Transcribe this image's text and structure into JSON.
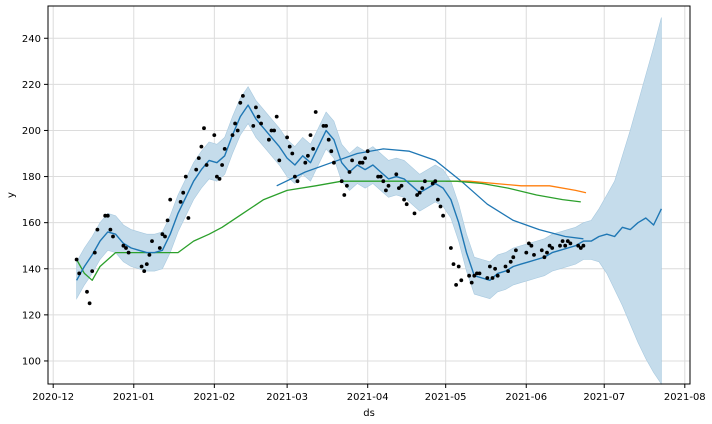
{
  "chart_data": {
    "type": "line",
    "title": "",
    "xlabel": "ds",
    "ylabel": "y",
    "x_range": [
      "2020-11-29",
      "2021-08-03"
    ],
    "ylim": [
      90,
      254
    ],
    "grid": true,
    "x_ticks": [
      "2020-12",
      "2021-01",
      "2021-02",
      "2021-03",
      "2021-04",
      "2021-05",
      "2021-06",
      "2021-07",
      "2021-08"
    ],
    "y_ticks": [
      100,
      120,
      140,
      160,
      180,
      200,
      220,
      240
    ],
    "colors": {
      "forecast": "#1f77b4",
      "band": "#c5dceb",
      "observed": "#000000",
      "trend_history": "#2ca02c",
      "trend_alt": "#ff7f0e",
      "trend_alt2": "#1f77b4"
    },
    "forecast": {
      "x": [
        "2020-12-10",
        "2020-12-13",
        "2020-12-16",
        "2020-12-19",
        "2020-12-22",
        "2020-12-25",
        "2020-12-28",
        "2020-12-31",
        "2021-01-03",
        "2021-01-06",
        "2021-01-09",
        "2021-01-12",
        "2021-01-15",
        "2021-01-18",
        "2021-01-21",
        "2021-01-24",
        "2021-01-27",
        "2021-01-30",
        "2021-02-02",
        "2021-02-05",
        "2021-02-08",
        "2021-02-11",
        "2021-02-14",
        "2021-02-17",
        "2021-02-20",
        "2021-02-23",
        "2021-02-26",
        "2021-03-01",
        "2021-03-04",
        "2021-03-07",
        "2021-03-10",
        "2021-03-13",
        "2021-03-16",
        "2021-03-19",
        "2021-03-22",
        "2021-03-25",
        "2021-03-28",
        "2021-03-31",
        "2021-04-03",
        "2021-04-06",
        "2021-04-09",
        "2021-04-12",
        "2021-04-15",
        "2021-04-18",
        "2021-04-21",
        "2021-04-24",
        "2021-04-27",
        "2021-04-30",
        "2021-05-03",
        "2021-05-06",
        "2021-05-09",
        "2021-05-12",
        "2021-05-15",
        "2021-05-18",
        "2021-05-21",
        "2021-05-24",
        "2021-05-27",
        "2021-05-30",
        "2021-06-02",
        "2021-06-05",
        "2021-06-08",
        "2021-06-11",
        "2021-06-14",
        "2021-06-17",
        "2021-06-20",
        "2021-06-23",
        "2021-06-26",
        "2021-06-29",
        "2021-07-02",
        "2021-07-05",
        "2021-07-08",
        "2021-07-11",
        "2021-07-14",
        "2021-07-17",
        "2021-07-20",
        "2021-07-23"
      ],
      "yhat": [
        135,
        141,
        146,
        152,
        156,
        155,
        151,
        149,
        148,
        147,
        147,
        148,
        155,
        164,
        171,
        178,
        183,
        187,
        186,
        189,
        198,
        206,
        211,
        205,
        201,
        197,
        193,
        188,
        185,
        189,
        186,
        193,
        200,
        196,
        186,
        182,
        185,
        183,
        185,
        182,
        179,
        180,
        179,
        176,
        173,
        175,
        177,
        175,
        170,
        160,
        147,
        137,
        136,
        135,
        138,
        139,
        141,
        142,
        143,
        144,
        145,
        147,
        148,
        149,
        150,
        152,
        152,
        154,
        155,
        154,
        158,
        157,
        160,
        162,
        159,
        166
      ],
      "yhat_upper": [
        143,
        149,
        154,
        160,
        164,
        163,
        159,
        157,
        156,
        155,
        155,
        156,
        163,
        172,
        179,
        186,
        191,
        195,
        194,
        197,
        206,
        214,
        219,
        213,
        209,
        205,
        201,
        196,
        193,
        197,
        194,
        201,
        208,
        204,
        194,
        190,
        193,
        191,
        193,
        190,
        187,
        188,
        187,
        184,
        181,
        183,
        185,
        183,
        178,
        168,
        155,
        145,
        144,
        143,
        146,
        147,
        149,
        150,
        151,
        152,
        153,
        155,
        156,
        157,
        158,
        160,
        161,
        166,
        172,
        178,
        189,
        200,
        212,
        224,
        236,
        249
      ],
      "yhat_lower": [
        127,
        133,
        138,
        144,
        148,
        147,
        143,
        141,
        140,
        139,
        139,
        140,
        147,
        156,
        163,
        170,
        175,
        179,
        178,
        181,
        190,
        198,
        203,
        197,
        193,
        189,
        185,
        180,
        177,
        181,
        178,
        185,
        192,
        188,
        178,
        174,
        177,
        175,
        177,
        174,
        171,
        172,
        171,
        168,
        165,
        167,
        169,
        167,
        162,
        152,
        139,
        129,
        128,
        127,
        130,
        131,
        133,
        134,
        135,
        136,
        137,
        139,
        140,
        141,
        142,
        144,
        144,
        143,
        138,
        131,
        124,
        116,
        108,
        101,
        95,
        90
      ]
    },
    "observed": {
      "x": [
        "2020-12-10",
        "2020-12-11",
        "2020-12-14",
        "2020-12-15",
        "2020-12-16",
        "2020-12-17",
        "2020-12-18",
        "2020-12-21",
        "2020-12-22",
        "2020-12-23",
        "2020-12-24",
        "2020-12-28",
        "2020-12-29",
        "2020-12-30",
        "2021-01-04",
        "2021-01-05",
        "2021-01-06",
        "2021-01-07",
        "2021-01-08",
        "2021-01-11",
        "2021-01-12",
        "2021-01-13",
        "2021-01-14",
        "2021-01-15",
        "2021-01-19",
        "2021-01-20",
        "2021-01-21",
        "2021-01-22",
        "2021-01-25",
        "2021-01-26",
        "2021-01-27",
        "2021-01-28",
        "2021-01-29",
        "2021-02-01",
        "2021-02-02",
        "2021-02-03",
        "2021-02-04",
        "2021-02-05",
        "2021-02-08",
        "2021-02-09",
        "2021-02-10",
        "2021-02-11",
        "2021-02-12",
        "2021-02-16",
        "2021-02-17",
        "2021-02-18",
        "2021-02-19",
        "2021-02-22",
        "2021-02-23",
        "2021-02-24",
        "2021-02-25",
        "2021-02-26",
        "2021-03-01",
        "2021-03-02",
        "2021-03-03",
        "2021-03-04",
        "2021-03-05",
        "2021-03-08",
        "2021-03-09",
        "2021-03-10",
        "2021-03-11",
        "2021-03-12",
        "2021-03-15",
        "2021-03-16",
        "2021-03-17",
        "2021-03-18",
        "2021-03-19",
        "2021-03-22",
        "2021-03-23",
        "2021-03-24",
        "2021-03-25",
        "2021-03-26",
        "2021-03-29",
        "2021-03-30",
        "2021-03-31",
        "2021-04-01",
        "2021-04-05",
        "2021-04-06",
        "2021-04-07",
        "2021-04-08",
        "2021-04-09",
        "2021-04-12",
        "2021-04-13",
        "2021-04-14",
        "2021-04-15",
        "2021-04-16",
        "2021-04-19",
        "2021-04-20",
        "2021-04-21",
        "2021-04-22",
        "2021-04-23",
        "2021-04-26",
        "2021-04-27",
        "2021-04-28",
        "2021-04-29",
        "2021-04-30",
        "2021-05-03",
        "2021-05-04",
        "2021-05-05",
        "2021-05-06",
        "2021-05-07",
        "2021-05-10",
        "2021-05-11",
        "2021-05-12",
        "2021-05-13",
        "2021-05-14",
        "2021-05-17",
        "2021-05-18",
        "2021-05-19",
        "2021-05-20",
        "2021-05-21",
        "2021-05-24",
        "2021-05-25",
        "2021-05-26",
        "2021-05-27",
        "2021-05-28",
        "2021-06-01",
        "2021-06-02",
        "2021-06-03",
        "2021-06-04",
        "2021-06-07",
        "2021-06-08",
        "2021-06-09",
        "2021-06-10",
        "2021-06-11",
        "2021-06-14",
        "2021-06-15",
        "2021-06-16",
        "2021-06-17",
        "2021-06-18",
        "2021-06-21",
        "2021-06-22",
        "2021-06-23"
      ],
      "y": [
        144,
        138,
        130,
        125,
        139,
        147,
        157,
        163,
        163,
        157,
        154,
        150,
        149,
        147,
        141,
        139,
        142,
        146,
        152,
        149,
        155,
        154,
        161,
        170,
        169,
        173,
        180,
        162,
        183,
        188,
        193,
        201,
        185,
        198,
        180,
        179,
        185,
        192,
        198,
        203,
        200,
        212,
        215,
        202,
        210,
        206,
        203,
        196,
        200,
        200,
        206,
        187,
        197,
        193,
        190,
        180,
        178,
        186,
        189,
        198,
        192,
        208,
        202,
        202,
        196,
        191,
        186,
        178,
        172,
        176,
        182,
        187,
        186,
        186,
        188,
        191,
        180,
        180,
        178,
        174,
        176,
        181,
        175,
        176,
        170,
        168,
        164,
        172,
        173,
        175,
        178,
        177,
        178,
        170,
        167,
        163,
        149,
        142,
        133,
        141,
        135,
        137,
        134,
        137,
        138,
        138,
        136,
        141,
        136,
        140,
        137,
        141,
        139,
        143,
        145,
        148,
        147,
        151,
        150,
        146,
        148,
        145,
        147,
        150,
        149,
        150,
        152,
        150,
        152,
        151,
        150,
        149,
        150
      ]
    },
    "trend_history": {
      "x": [
        "2020-12-10",
        "2020-12-13",
        "2020-12-16",
        "2020-12-19",
        "2020-12-25",
        "2021-01-01",
        "2021-01-10",
        "2021-01-18",
        "2021-01-24",
        "2021-01-30",
        "2021-02-04",
        "2021-02-12",
        "2021-02-20",
        "2021-03-01",
        "2021-03-12",
        "2021-03-22",
        "2021-04-01",
        "2021-04-12",
        "2021-04-25",
        "2021-05-05",
        "2021-05-15",
        "2021-05-25",
        "2021-06-05",
        "2021-06-15",
        "2021-06-22"
      ],
      "y": [
        144,
        138,
        135,
        141,
        147,
        147,
        147,
        147,
        152,
        155,
        158,
        164,
        170,
        174,
        176,
        178,
        178,
        178,
        178,
        178,
        177,
        175,
        172,
        170,
        169
      ]
    },
    "trend_alt": {
      "x": [
        "2021-05-01",
        "2021-05-10",
        "2021-05-20",
        "2021-05-30",
        "2021-06-10",
        "2021-06-20",
        "2021-06-24"
      ],
      "y": [
        178,
        178,
        177,
        176,
        176,
        174,
        173
      ]
    },
    "trend_alt2": {
      "x": [
        "2021-02-25",
        "2021-03-08",
        "2021-03-18",
        "2021-03-28",
        "2021-04-07",
        "2021-04-17",
        "2021-04-27",
        "2021-05-07",
        "2021-05-17",
        "2021-05-27",
        "2021-06-06",
        "2021-06-16",
        "2021-06-23"
      ],
      "y": [
        176,
        182,
        186,
        190,
        192,
        191,
        187,
        178,
        168,
        161,
        157,
        154,
        153
      ]
    }
  }
}
